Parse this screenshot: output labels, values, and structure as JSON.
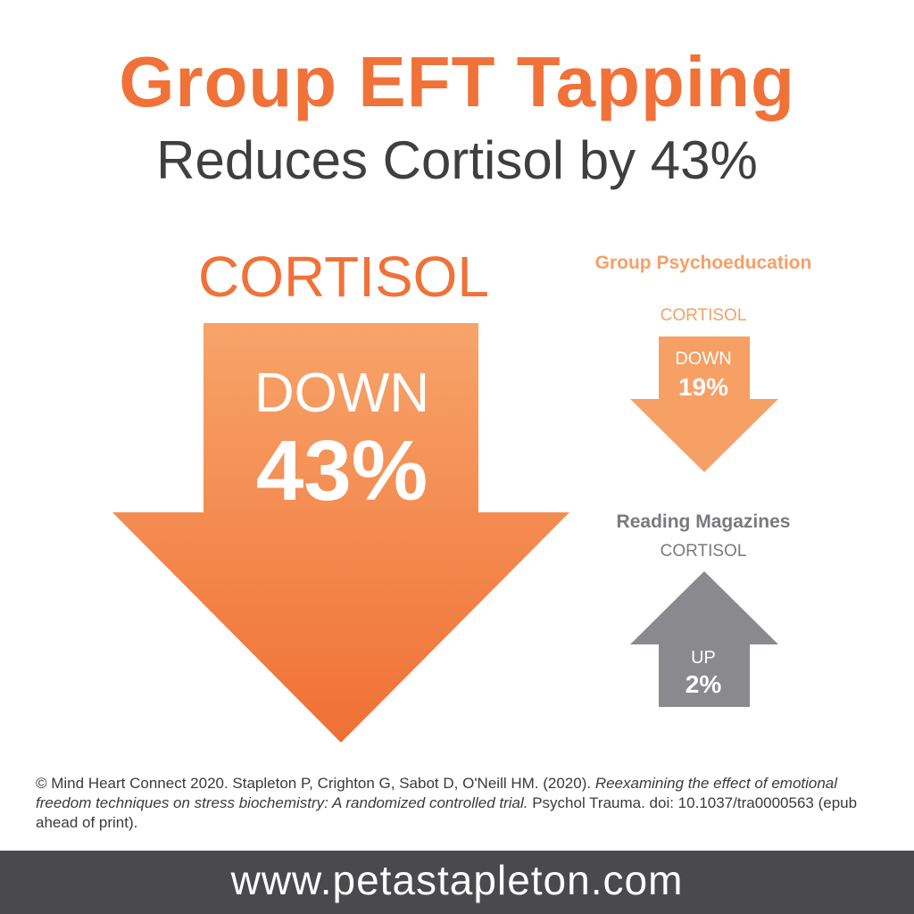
{
  "title": "Group EFT Tapping",
  "subtitle": "Reduces Cortisol by 43%",
  "chart_data": {
    "type": "bar",
    "categories": [
      "Group EFT Tapping",
      "Group Psychoeducation",
      "Reading Magazines"
    ],
    "values": [
      -43,
      -19,
      2
    ],
    "unit": "%",
    "measure": "CORTISOL"
  },
  "main": {
    "label": "CORTISOL",
    "direction": "DOWN",
    "value": "43%",
    "color": "#f07238"
  },
  "psychoeducation": {
    "title": "Group Psychoeducation",
    "label": "CORTISOL",
    "direction": "DOWN",
    "value": "19%",
    "color": "#f6a066"
  },
  "magazines": {
    "title": "Reading Magazines",
    "label": "CORTISOL",
    "direction": "UP",
    "value": "2%",
    "color": "#8a8a8e"
  },
  "citation": {
    "prefix": "© Mind Heart Connect 2020. Stapleton P, Crighton G, Sabot D, O'Neill HM. (2020). ",
    "article": "Reexamining the effect of emotional freedom techniques on stress biochemistry:  A randomized controlled trial.",
    "suffix": " Psychol Trauma. doi: 10.1037/tra0000563 (epub ahead of print)."
  },
  "footer": {
    "url": "www.petastapleton.com"
  }
}
